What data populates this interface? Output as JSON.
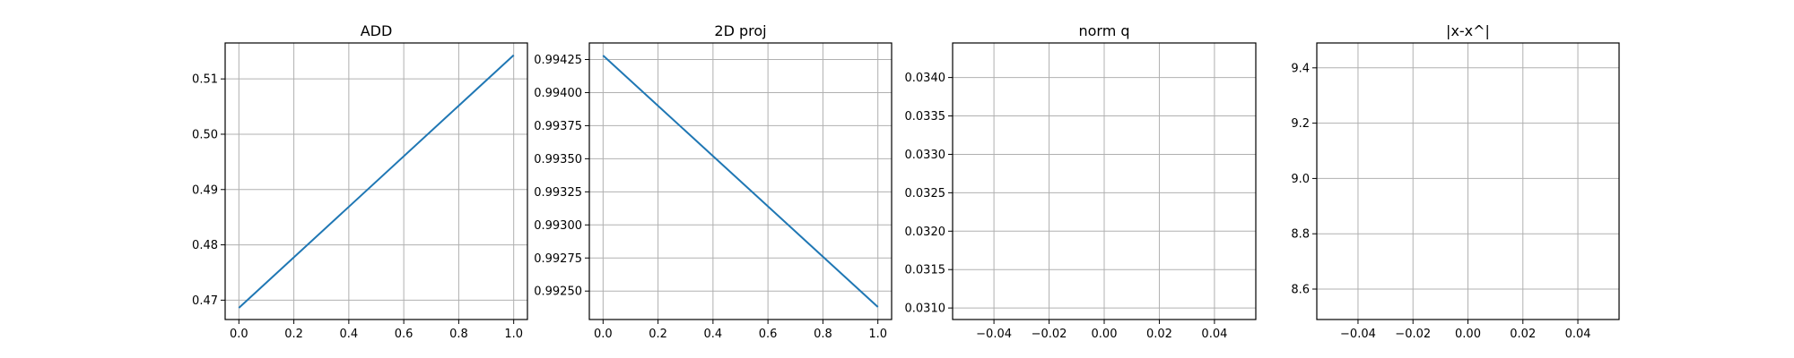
{
  "chart_data": [
    {
      "type": "line",
      "title": "ADD",
      "xlim": [
        -0.05,
        1.05
      ],
      "ylim": [
        0.4665,
        0.5165
      ],
      "xticks": [
        0.0,
        0.2,
        0.4,
        0.6,
        0.8,
        1.0
      ],
      "xtick_labels": [
        "0.0",
        "0.2",
        "0.4",
        "0.6",
        "0.8",
        "1.0"
      ],
      "yticks": [
        0.47,
        0.48,
        0.49,
        0.5,
        0.51
      ],
      "ytick_labels": [
        "0.47",
        "0.48",
        "0.49",
        "0.50",
        "0.51"
      ],
      "grid": true,
      "series": [
        {
          "x": [
            0,
            1
          ],
          "y": [
            0.4686,
            0.5143
          ],
          "color": "#1f77b4"
        }
      ]
    },
    {
      "type": "line",
      "title": "2D proj",
      "xlim": [
        -0.05,
        1.05
      ],
      "ylim": [
        0.992285,
        0.994375
      ],
      "xticks": [
        0.0,
        0.2,
        0.4,
        0.6,
        0.8,
        1.0
      ],
      "xtick_labels": [
        "0.0",
        "0.2",
        "0.4",
        "0.6",
        "0.8",
        "1.0"
      ],
      "yticks": [
        0.9925,
        0.99275,
        0.993,
        0.99325,
        0.9935,
        0.99375,
        0.994,
        0.99425
      ],
      "ytick_labels": [
        "0.99250",
        "0.99275",
        "0.99300",
        "0.99325",
        "0.99350",
        "0.99375",
        "0.99400",
        "0.99425"
      ],
      "grid": true,
      "series": [
        {
          "x": [
            0,
            1
          ],
          "y": [
            0.99428,
            0.99238
          ],
          "color": "#1f77b4"
        }
      ]
    },
    {
      "type": "line",
      "title": "norm q",
      "xlim": [
        -0.055,
        0.055
      ],
      "ylim": [
        0.03085,
        0.03445
      ],
      "xticks": [
        -0.04,
        -0.02,
        0.0,
        0.02,
        0.04
      ],
      "xtick_labels": [
        "−0.04",
        "−0.02",
        "0.00",
        "0.02",
        "0.04"
      ],
      "yticks": [
        0.031,
        0.0315,
        0.032,
        0.0325,
        0.033,
        0.0335,
        0.034
      ],
      "ytick_labels": [
        "0.0310",
        "0.0315",
        "0.0320",
        "0.0325",
        "0.0330",
        "0.0335",
        "0.0340"
      ],
      "grid": true,
      "series": []
    },
    {
      "type": "line",
      "title": "|x-x^|",
      "xlim": [
        -0.055,
        0.055
      ],
      "ylim": [
        8.49,
        9.49
      ],
      "xticks": [
        -0.04,
        -0.02,
        0.0,
        0.02,
        0.04
      ],
      "xtick_labels": [
        "−0.04",
        "−0.02",
        "0.00",
        "0.02",
        "0.04"
      ],
      "yticks": [
        8.6,
        8.8,
        9.0,
        9.2,
        9.4
      ],
      "ytick_labels": [
        "8.6",
        "8.8",
        "9.0",
        "9.2",
        "9.4"
      ],
      "grid": true,
      "series": []
    }
  ]
}
